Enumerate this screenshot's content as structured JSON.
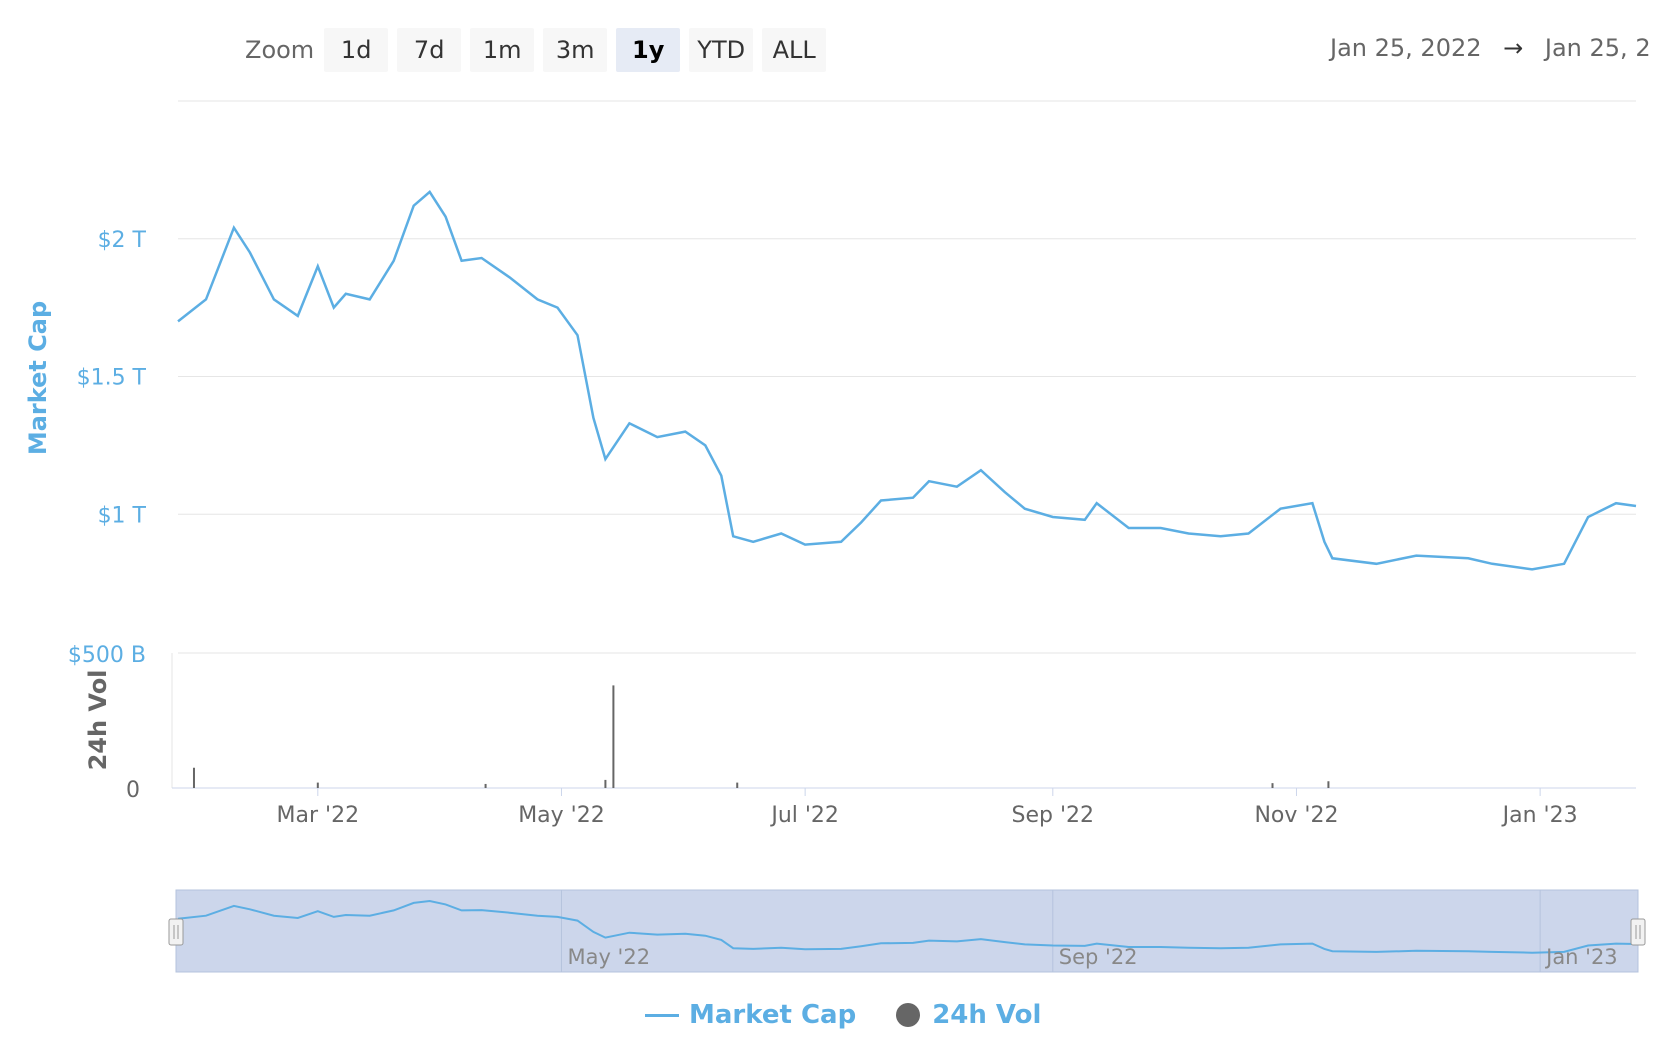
{
  "toolbar": {
    "zoom_label": "Zoom",
    "buttons": [
      "1d",
      "7d",
      "1m",
      "3m",
      "1y",
      "YTD",
      "ALL"
    ],
    "active": "1y"
  },
  "range": {
    "from": "Jan 25, 2022",
    "arrow": "→",
    "to": "Jan 25, 2"
  },
  "colors": {
    "market_cap": "#5caee3",
    "volume": "#666666",
    "navigator_fill": "#ccd6eb"
  },
  "legend": {
    "market_cap": "Market Cap",
    "volume": "24h Vol"
  },
  "chart_data": {
    "type": "line",
    "x_axis": {
      "tick_labels": [
        "Mar '22",
        "May '22",
        "Jul '22",
        "Sep '22",
        "Nov '22",
        "Jan '23"
      ],
      "range": [
        "2022-01-25",
        "2023-01-25"
      ]
    },
    "y_axis_market_cap": {
      "label": "Market Cap",
      "tick_labels": [
        "$2 T",
        "$1.5 T",
        "$1 T"
      ],
      "ticks": [
        2.0,
        1.5,
        1.0
      ],
      "range": [
        0.5,
        2.5
      ],
      "unit": "T"
    },
    "y_axis_volume": {
      "label": "24h Vol",
      "tick_labels": [
        "$500 B",
        "0"
      ],
      "range": [
        0,
        500
      ],
      "unit": "B"
    },
    "series": [
      {
        "name": "Market Cap",
        "x": [
          "2022-01-25",
          "2022-02-01",
          "2022-02-08",
          "2022-02-12",
          "2022-02-18",
          "2022-02-24",
          "2022-03-01",
          "2022-03-05",
          "2022-03-08",
          "2022-03-14",
          "2022-03-20",
          "2022-03-25",
          "2022-03-29",
          "2022-04-02",
          "2022-04-06",
          "2022-04-11",
          "2022-04-18",
          "2022-04-25",
          "2022-04-30",
          "2022-05-05",
          "2022-05-09",
          "2022-05-12",
          "2022-05-18",
          "2022-05-25",
          "2022-06-01",
          "2022-06-06",
          "2022-06-10",
          "2022-06-13",
          "2022-06-18",
          "2022-06-25",
          "2022-07-01",
          "2022-07-10",
          "2022-07-15",
          "2022-07-20",
          "2022-07-28",
          "2022-08-01",
          "2022-08-08",
          "2022-08-14",
          "2022-08-20",
          "2022-08-25",
          "2022-09-01",
          "2022-09-09",
          "2022-09-12",
          "2022-09-20",
          "2022-09-28",
          "2022-10-05",
          "2022-10-13",
          "2022-10-20",
          "2022-10-28",
          "2022-11-05",
          "2022-11-08",
          "2022-11-10",
          "2022-11-21",
          "2022-12-01",
          "2022-12-14",
          "2022-12-20",
          "2022-12-30",
          "2023-01-07",
          "2023-01-13",
          "2023-01-20",
          "2023-01-25"
        ],
        "values": [
          1.7,
          1.78,
          2.04,
          1.95,
          1.78,
          1.72,
          1.9,
          1.75,
          1.8,
          1.78,
          1.92,
          2.12,
          2.17,
          2.08,
          1.92,
          1.93,
          1.86,
          1.78,
          1.75,
          1.65,
          1.35,
          1.2,
          1.33,
          1.28,
          1.3,
          1.25,
          1.14,
          0.92,
          0.9,
          0.93,
          0.89,
          0.9,
          0.97,
          1.05,
          1.06,
          1.12,
          1.1,
          1.16,
          1.08,
          1.02,
          0.99,
          0.98,
          1.04,
          0.95,
          0.95,
          0.93,
          0.92,
          0.93,
          1.02,
          1.04,
          0.9,
          0.84,
          0.82,
          0.85,
          0.84,
          0.82,
          0.8,
          0.82,
          0.99,
          1.04,
          1.03
        ]
      },
      {
        "name": "24h Vol",
        "x": [
          "2022-01-29",
          "2022-03-01",
          "2022-04-12",
          "2022-05-12",
          "2022-05-14",
          "2022-06-14",
          "2022-10-26",
          "2022-11-09"
        ],
        "values": [
          75,
          20,
          15,
          30,
          380,
          20,
          18,
          25
        ]
      }
    ],
    "grid": true,
    "legend_position": "bottom-center",
    "navigator": {
      "tick_labels": [
        "May '22",
        "Sep '22",
        "Jan '23"
      ],
      "selected": [
        "2022-01-25",
        "2023-01-25"
      ]
    }
  }
}
